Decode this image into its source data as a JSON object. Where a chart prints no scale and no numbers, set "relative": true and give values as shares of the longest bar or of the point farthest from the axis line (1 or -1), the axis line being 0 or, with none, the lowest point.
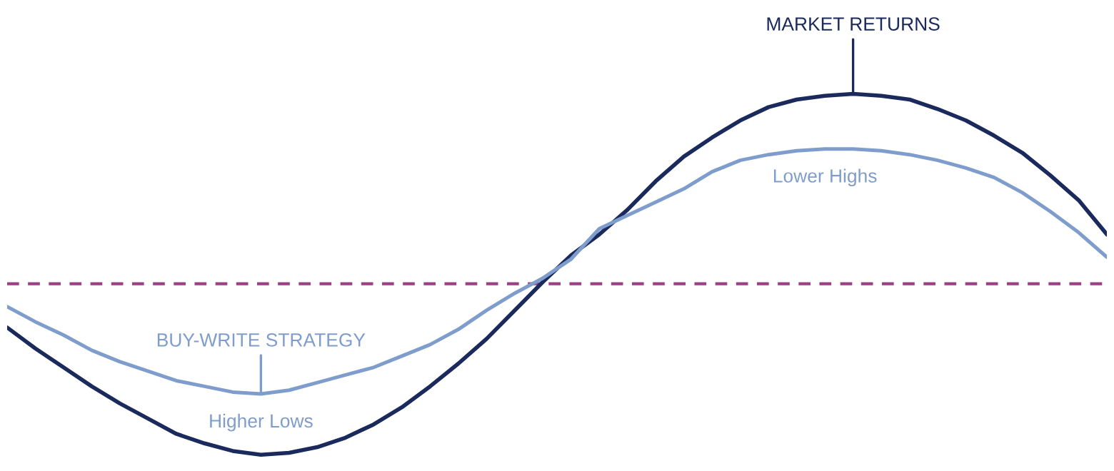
{
  "chart_data": {
    "type": "line",
    "relative": true,
    "categories": [
      null,
      null,
      null,
      null,
      null,
      null,
      null,
      null,
      null,
      null,
      null,
      null,
      null,
      null,
      null,
      null,
      null,
      null,
      null,
      null,
      null,
      null,
      null,
      null,
      null,
      null,
      null,
      null,
      null,
      null,
      null,
      null,
      null,
      null,
      null,
      null,
      null,
      null,
      null,
      null
    ],
    "series": [
      {
        "name": "MARKET RETURNS",
        "color": "#1b2a5c",
        "values": [
          -0.23,
          -0.34,
          -0.44,
          -0.54,
          -0.63,
          -0.71,
          -0.79,
          -0.84,
          -0.88,
          -0.9,
          -0.89,
          -0.86,
          -0.81,
          -0.74,
          -0.65,
          -0.54,
          -0.42,
          -0.29,
          -0.14,
          0.01,
          0.15,
          0.26,
          0.39,
          0.54,
          0.67,
          0.77,
          0.86,
          0.93,
          0.97,
          0.99,
          1.0,
          0.99,
          0.97,
          0.92,
          0.86,
          0.78,
          0.69,
          0.57,
          0.44,
          0.26
        ]
      },
      {
        "name": "BUY-WRITE STRATEGY",
        "color": "#7f9dcc",
        "values": [
          -0.12,
          -0.2,
          -0.27,
          -0.35,
          -0.41,
          -0.46,
          -0.51,
          -0.54,
          -0.57,
          -0.58,
          -0.56,
          -0.52,
          -0.48,
          -0.44,
          -0.38,
          -0.32,
          -0.24,
          -0.14,
          -0.05,
          0.03,
          0.13,
          0.29,
          0.36,
          0.43,
          0.5,
          0.59,
          0.65,
          0.68,
          0.7,
          0.71,
          0.71,
          0.7,
          0.68,
          0.65,
          0.61,
          0.56,
          0.48,
          0.38,
          0.27,
          0.14
        ]
      }
    ],
    "ref_lines": [
      {
        "axis": "y",
        "value": 0,
        "color": "#9c3f84",
        "line_style": "dashed"
      }
    ],
    "annotations": [
      "Higher Lows",
      "Lower Highs"
    ],
    "legend": false,
    "marker": "none",
    "line_style": "solid"
  }
}
